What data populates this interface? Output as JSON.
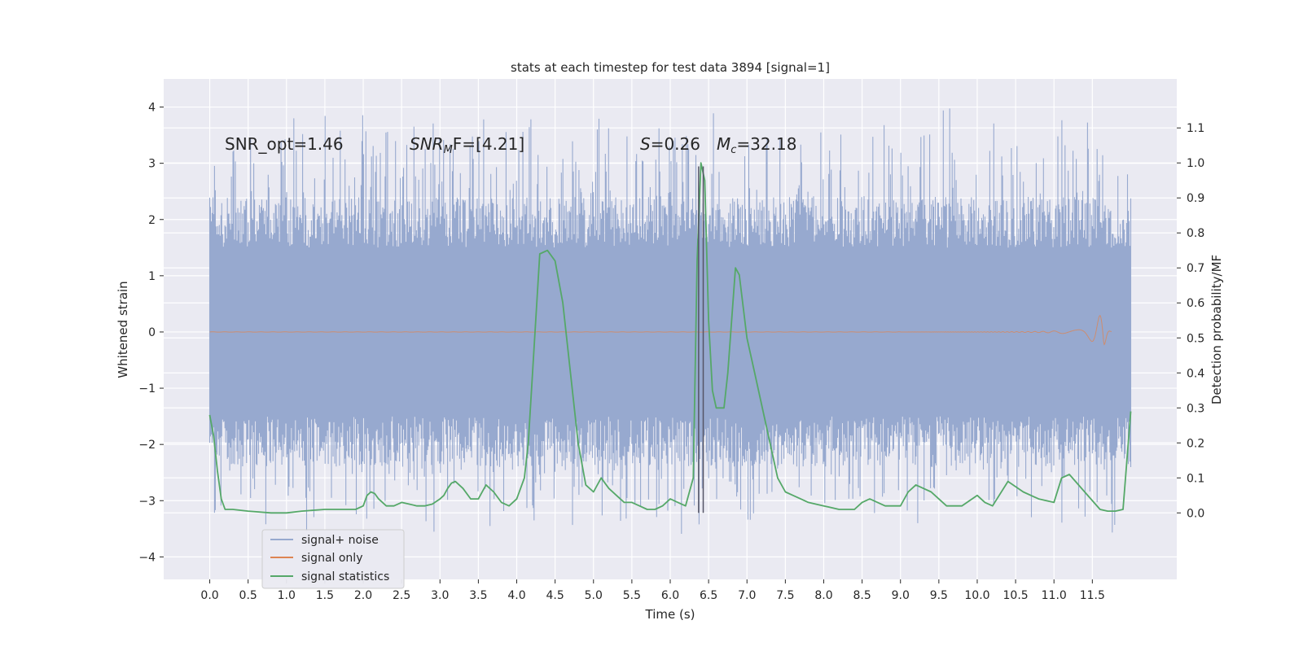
{
  "chart_data": {
    "type": "line",
    "title": "stats at each timestep for test data 3894 [signal=1]",
    "xlabel": "Time (s)",
    "ylabel": "Whitened strain",
    "y2label": "Detection probability/MF",
    "xlim": [
      -0.6,
      12.6
    ],
    "ylim": [
      -4.4,
      4.5
    ],
    "y2lim": [
      -0.19,
      1.24
    ],
    "x_ticks": [
      "0.0",
      "0.5",
      "1.0",
      "1.5",
      "2.0",
      "2.5",
      "3.0",
      "3.5",
      "4.0",
      "4.5",
      "5.0",
      "5.5",
      "6.0",
      "6.5",
      "7.0",
      "7.5",
      "8.0",
      "8.5",
      "9.0",
      "9.5",
      "10.0",
      "10.5",
      "11.0",
      "11.5"
    ],
    "y_ticks": [
      "4",
      "3",
      "2",
      "1",
      "0",
      "−1",
      "−2",
      "−3",
      "−4"
    ],
    "y2_ticks": [
      "1.1",
      "1.0",
      "0.9",
      "0.8",
      "0.7",
      "0.6",
      "0.5",
      "0.4",
      "0.3",
      "0.2",
      "0.1",
      "0.0"
    ],
    "grid": true,
    "legend_position": "lower-left",
    "annotations": {
      "snr_opt": "SNR_opt=1.46",
      "snr_mf_main": "SNR",
      "snr_mf_sub": "M",
      "snr_mf_tail": "F=[4.21]",
      "s_main": "S",
      "s_tail": "=0.26",
      "mc_main": "M",
      "mc_sub": "c",
      "mc_tail": "=32.18"
    },
    "vlines": [
      6.37,
      6.43
    ],
    "noise": {
      "x_start": 0.0,
      "x_end": 12.0,
      "envelope": 1.4,
      "spike_max": 4.1,
      "spike_min": -3.8
    },
    "signal_only": {
      "x_start": 0.0,
      "x_end": 11.75,
      "chirp_peak_x": 11.65,
      "chirp_amplitude": 0.38
    },
    "series": [
      {
        "name": "signal+ noise",
        "color": "#97a9cf"
      },
      {
        "name": "signal only",
        "color": "#dd8452"
      },
      {
        "name": "signal statistics",
        "color": "#55a868",
        "x": [
          0.0,
          0.05,
          0.1,
          0.15,
          0.2,
          0.3,
          0.5,
          0.8,
          1.0,
          1.2,
          1.5,
          1.7,
          1.9,
          2.0,
          2.05,
          2.1,
          2.15,
          2.2,
          2.3,
          2.4,
          2.5,
          2.6,
          2.7,
          2.8,
          2.9,
          3.0,
          3.05,
          3.1,
          3.15,
          3.2,
          3.3,
          3.4,
          3.5,
          3.6,
          3.7,
          3.8,
          3.9,
          4.0,
          4.1,
          4.15,
          4.2,
          4.3,
          4.4,
          4.5,
          4.6,
          4.7,
          4.8,
          4.9,
          5.0,
          5.1,
          5.2,
          5.3,
          5.4,
          5.5,
          5.6,
          5.7,
          5.8,
          5.9,
          6.0,
          6.1,
          6.2,
          6.3,
          6.35,
          6.4,
          6.45,
          6.5,
          6.55,
          6.6,
          6.7,
          6.75,
          6.8,
          6.85,
          6.9,
          7.0,
          7.1,
          7.2,
          7.3,
          7.4,
          7.5,
          7.6,
          7.7,
          7.8,
          8.0,
          8.2,
          8.4,
          8.5,
          8.6,
          8.8,
          9.0,
          9.1,
          9.2,
          9.4,
          9.6,
          9.8,
          10.0,
          10.1,
          10.2,
          10.4,
          10.6,
          10.8,
          11.0,
          11.1,
          11.2,
          11.4,
          11.6,
          11.7,
          11.8,
          11.9,
          12.0
        ],
        "values": [
          0.28,
          0.22,
          0.12,
          0.04,
          0.01,
          0.01,
          0.005,
          0.0,
          0.0,
          0.005,
          0.01,
          0.01,
          0.01,
          0.02,
          0.05,
          0.06,
          0.055,
          0.04,
          0.02,
          0.02,
          0.03,
          0.025,
          0.02,
          0.02,
          0.025,
          0.04,
          0.05,
          0.07,
          0.085,
          0.09,
          0.07,
          0.04,
          0.04,
          0.08,
          0.06,
          0.03,
          0.02,
          0.04,
          0.1,
          0.2,
          0.38,
          0.74,
          0.75,
          0.72,
          0.6,
          0.4,
          0.2,
          0.08,
          0.06,
          0.1,
          0.07,
          0.05,
          0.03,
          0.03,
          0.02,
          0.01,
          0.01,
          0.02,
          0.04,
          0.03,
          0.02,
          0.1,
          0.72,
          1.0,
          0.95,
          0.55,
          0.35,
          0.3,
          0.3,
          0.4,
          0.55,
          0.7,
          0.68,
          0.5,
          0.4,
          0.3,
          0.2,
          0.1,
          0.06,
          0.05,
          0.04,
          0.03,
          0.02,
          0.01,
          0.01,
          0.03,
          0.04,
          0.02,
          0.02,
          0.06,
          0.08,
          0.06,
          0.02,
          0.02,
          0.05,
          0.03,
          0.02,
          0.09,
          0.06,
          0.04,
          0.03,
          0.1,
          0.11,
          0.06,
          0.01,
          0.005,
          0.005,
          0.01,
          0.29
        ]
      }
    ]
  }
}
